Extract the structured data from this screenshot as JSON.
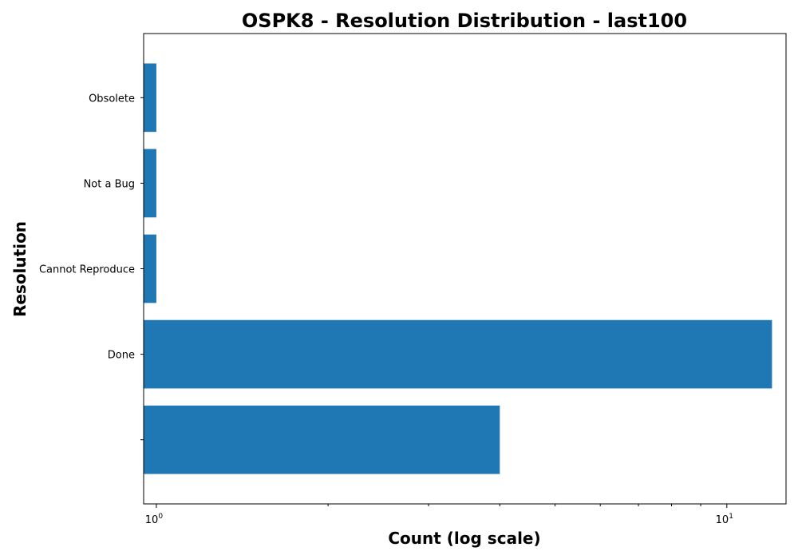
{
  "chart_data": {
    "type": "bar",
    "orientation": "horizontal",
    "title": "OSPK8 - Resolution Distribution - last100",
    "xlabel": "Count (log scale)",
    "ylabel": "Resolution",
    "xscale": "log",
    "xlim": [
      0.95,
      12.7
    ],
    "xticks": [
      {
        "value": 1,
        "base": "10",
        "exponent": "0"
      },
      {
        "value": 10,
        "base": "10",
        "exponent": "1"
      }
    ],
    "categories": [
      "",
      "Done",
      "Cannot Reproduce",
      "Not a Bug",
      "Obsolete"
    ],
    "values": [
      4,
      12,
      1,
      1,
      1
    ],
    "bar_color": "#1f77b4"
  }
}
